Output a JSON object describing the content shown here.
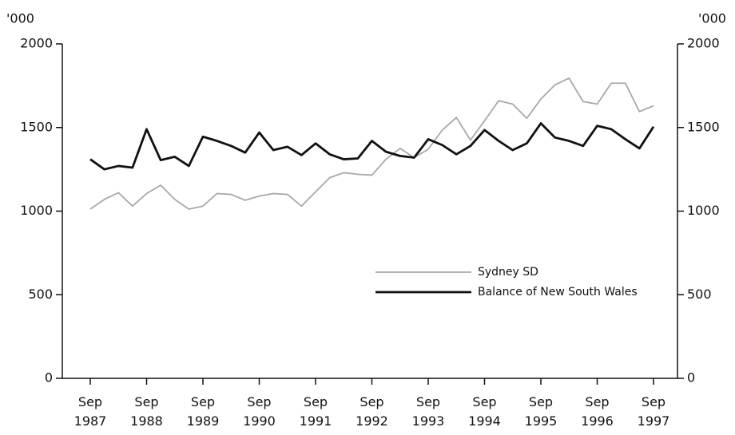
{
  "chart_data": {
    "type": "line",
    "y_label": "'000",
    "y2_label": "'000",
    "categories": [
      "Sep 1987",
      null,
      null,
      null,
      "Sep 1988",
      null,
      null,
      null,
      "Sep 1989",
      null,
      null,
      null,
      "Sep 1990",
      null,
      null,
      null,
      "Sep 1991",
      null,
      null,
      null,
      "Sep 1992",
      null,
      null,
      null,
      "Sep 1993",
      null,
      null,
      null,
      "Sep 1994",
      null,
      null,
      null,
      "Sep 1995",
      null,
      null,
      null,
      "Sep 1996",
      null,
      null,
      null,
      "Sep 1997"
    ],
    "series": [
      {
        "name": "Sydney SD",
        "color": "#a8a8a8",
        "values": [
          1012,
          1070,
          1110,
          1030,
          1105,
          1155,
          1070,
          1012,
          1030,
          1105,
          1100,
          1065,
          1090,
          1105,
          1100,
          1030,
          1115,
          1200,
          1230,
          1220,
          1215,
          1310,
          1375,
          1320,
          1370,
          1485,
          1560,
          1425,
          1540,
          1660,
          1640,
          1555,
          1670,
          1755,
          1795,
          1655,
          1640,
          1765,
          1765,
          1595,
          1630
        ]
      },
      {
        "name": "Balance of New South Wales",
        "color": "#111111",
        "values": [
          1310,
          1250,
          1270,
          1260,
          1490,
          1305,
          1325,
          1270,
          1445,
          1420,
          1390,
          1350,
          1470,
          1365,
          1385,
          1335,
          1405,
          1340,
          1310,
          1315,
          1420,
          1355,
          1330,
          1320,
          1430,
          1395,
          1340,
          1390,
          1485,
          1420,
          1365,
          1405,
          1525,
          1440,
          1420,
          1390,
          1510,
          1490,
          1430,
          1375,
          1505
        ]
      }
    ],
    "ylim": [
      0,
      2000
    ],
    "yticks": [
      0,
      500,
      1000,
      1500,
      2000
    ],
    "y2lim": [
      0,
      2000
    ],
    "y2ticks": [
      0,
      500,
      1000,
      1500,
      2000
    ],
    "grid": false,
    "legend": "lower right"
  }
}
